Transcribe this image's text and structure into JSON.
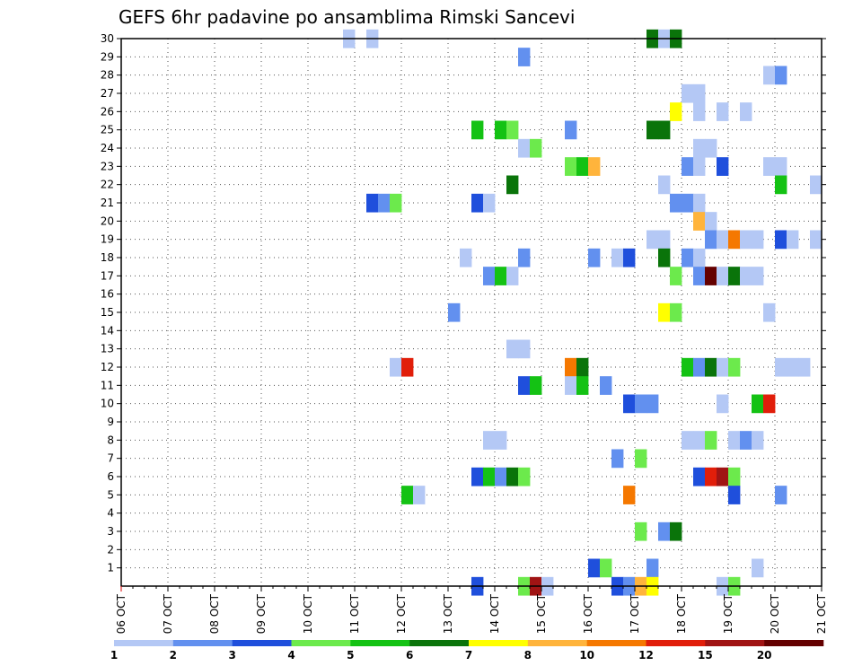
{
  "chart_data": {
    "type": "heatmap",
    "title": "GEFS 6hr padavine po ansamblima Rimski Sancevi",
    "xlabel": "",
    "ylabel": "",
    "x_ticks": [
      "06 OCT",
      "07 OCT",
      "08 OCT",
      "09 OCT",
      "10 OCT",
      "11 OCT",
      "12 OCT",
      "13 OCT",
      "14 OCT",
      "15 OCT",
      "16 OCT",
      "17 OCT",
      "18 OCT",
      "19 OCT",
      "20 OCT",
      "21 OCT"
    ],
    "x_range_days": [
      6,
      21
    ],
    "y_ticks": [
      1,
      2,
      3,
      4,
      5,
      6,
      7,
      8,
      9,
      10,
      11,
      12,
      13,
      14,
      15,
      16,
      17,
      18,
      19,
      20,
      21,
      22,
      23,
      24,
      25,
      26,
      27,
      28,
      29,
      30
    ],
    "y_range": [
      0,
      30
    ],
    "grid": true,
    "time_step_hours": 6,
    "legend": {
      "placement": "bottom",
      "labels": [
        "1",
        "2",
        "3",
        "4",
        "5",
        "6",
        "7",
        "8",
        "10",
        "12",
        "15",
        "20"
      ],
      "colors": [
        "#b4c8f5",
        "#6290ef",
        "#1f4fdc",
        "#6cea4c",
        "#14c214",
        "#0a740a",
        "#ffff00",
        "#ffb43c",
        "#f57800",
        "#e11e0a",
        "#a01414",
        "#640000"
      ]
    },
    "cells_note": "each cell: member (0-30), start (day of October, float, 6h steps), level (index into legend colors)",
    "cells": [
      {
        "m": 30,
        "t": 10.75,
        "c": 0
      },
      {
        "m": 30,
        "t": 11.25,
        "c": 0
      },
      {
        "m": 30,
        "t": 17.25,
        "c": 5
      },
      {
        "m": 30,
        "t": 17.5,
        "c": 0
      },
      {
        "m": 30,
        "t": 17.75,
        "c": 5
      },
      {
        "m": 29,
        "t": 14.5,
        "c": 1
      },
      {
        "m": 28,
        "t": 19.75,
        "c": 0
      },
      {
        "m": 28,
        "t": 20.0,
        "c": 1
      },
      {
        "m": 27,
        "t": 18.0,
        "c": 0
      },
      {
        "m": 27,
        "t": 18.25,
        "c": 0
      },
      {
        "m": 26,
        "t": 17.75,
        "c": 6
      },
      {
        "m": 26,
        "t": 18.25,
        "c": 0
      },
      {
        "m": 26,
        "t": 18.75,
        "c": 0
      },
      {
        "m": 26,
        "t": 19.25,
        "c": 0
      },
      {
        "m": 25,
        "t": 13.5,
        "c": 4
      },
      {
        "m": 25,
        "t": 14.0,
        "c": 4
      },
      {
        "m": 25,
        "t": 14.25,
        "c": 3
      },
      {
        "m": 25,
        "t": 15.5,
        "c": 1
      },
      {
        "m": 25,
        "t": 17.25,
        "c": 5
      },
      {
        "m": 25,
        "t": 17.5,
        "c": 5
      },
      {
        "m": 24,
        "t": 14.5,
        "c": 0
      },
      {
        "m": 24,
        "t": 14.75,
        "c": 3
      },
      {
        "m": 24,
        "t": 18.25,
        "c": 0
      },
      {
        "m": 24,
        "t": 18.5,
        "c": 0
      },
      {
        "m": 23,
        "t": 15.5,
        "c": 3
      },
      {
        "m": 23,
        "t": 15.75,
        "c": 4
      },
      {
        "m": 23,
        "t": 16.0,
        "c": 7
      },
      {
        "m": 23,
        "t": 18.0,
        "c": 1
      },
      {
        "m": 23,
        "t": 18.25,
        "c": 0
      },
      {
        "m": 23,
        "t": 18.75,
        "c": 2
      },
      {
        "m": 23,
        "t": 19.75,
        "c": 0
      },
      {
        "m": 23,
        "t": 20.0,
        "c": 0
      },
      {
        "m": 22,
        "t": 14.25,
        "c": 5
      },
      {
        "m": 22,
        "t": 17.5,
        "c": 0
      },
      {
        "m": 22,
        "t": 20.0,
        "c": 4
      },
      {
        "m": 22,
        "t": 20.75,
        "c": 0
      },
      {
        "m": 21,
        "t": 11.25,
        "c": 2
      },
      {
        "m": 21,
        "t": 11.5,
        "c": 1
      },
      {
        "m": 21,
        "t": 11.75,
        "c": 3
      },
      {
        "m": 21,
        "t": 13.5,
        "c": 2
      },
      {
        "m": 21,
        "t": 13.75,
        "c": 0
      },
      {
        "m": 21,
        "t": 17.75,
        "c": 1
      },
      {
        "m": 21,
        "t": 18.0,
        "c": 1
      },
      {
        "m": 21,
        "t": 18.25,
        "c": 0
      },
      {
        "m": 20,
        "t": 18.25,
        "c": 7
      },
      {
        "m": 20,
        "t": 18.5,
        "c": 0
      },
      {
        "m": 19,
        "t": 17.25,
        "c": 0
      },
      {
        "m": 19,
        "t": 17.5,
        "c": 0
      },
      {
        "m": 19,
        "t": 18.5,
        "c": 1
      },
      {
        "m": 19,
        "t": 18.75,
        "c": 0
      },
      {
        "m": 19,
        "t": 19.0,
        "c": 8
      },
      {
        "m": 19,
        "t": 19.25,
        "c": 0
      },
      {
        "m": 19,
        "t": 19.5,
        "c": 0
      },
      {
        "m": 19,
        "t": 20.0,
        "c": 2
      },
      {
        "m": 19,
        "t": 20.25,
        "c": 0
      },
      {
        "m": 19,
        "t": 20.75,
        "c": 0
      },
      {
        "m": 18,
        "t": 13.25,
        "c": 0
      },
      {
        "m": 18,
        "t": 14.5,
        "c": 1
      },
      {
        "m": 18,
        "t": 16.0,
        "c": 1
      },
      {
        "m": 18,
        "t": 16.5,
        "c": 0
      },
      {
        "m": 18,
        "t": 16.75,
        "c": 2
      },
      {
        "m": 18,
        "t": 17.5,
        "c": 5
      },
      {
        "m": 18,
        "t": 18.0,
        "c": 1
      },
      {
        "m": 18,
        "t": 18.25,
        "c": 0
      },
      {
        "m": 17,
        "t": 13.75,
        "c": 1
      },
      {
        "m": 17,
        "t": 14.0,
        "c": 4
      },
      {
        "m": 17,
        "t": 14.25,
        "c": 0
      },
      {
        "m": 17,
        "t": 17.75,
        "c": 3
      },
      {
        "m": 17,
        "t": 18.25,
        "c": 1
      },
      {
        "m": 17,
        "t": 18.5,
        "c": 11
      },
      {
        "m": 17,
        "t": 18.75,
        "c": 0
      },
      {
        "m": 17,
        "t": 19.0,
        "c": 5
      },
      {
        "m": 17,
        "t": 19.25,
        "c": 0
      },
      {
        "m": 17,
        "t": 19.5,
        "c": 0
      },
      {
        "m": 15,
        "t": 13.0,
        "c": 1
      },
      {
        "m": 15,
        "t": 17.5,
        "c": 6
      },
      {
        "m": 15,
        "t": 17.75,
        "c": 3
      },
      {
        "m": 15,
        "t": 19.75,
        "c": 0
      },
      {
        "m": 13,
        "t": 14.25,
        "c": 0
      },
      {
        "m": 13,
        "t": 14.5,
        "c": 0
      },
      {
        "m": 12,
        "t": 11.75,
        "c": 0
      },
      {
        "m": 12,
        "t": 12.0,
        "c": 9
      },
      {
        "m": 12,
        "t": 15.5,
        "c": 8
      },
      {
        "m": 12,
        "t": 15.75,
        "c": 5
      },
      {
        "m": 12,
        "t": 18.0,
        "c": 4
      },
      {
        "m": 12,
        "t": 18.25,
        "c": 1
      },
      {
        "m": 12,
        "t": 18.5,
        "c": 5
      },
      {
        "m": 12,
        "t": 18.75,
        "c": 0
      },
      {
        "m": 12,
        "t": 19.0,
        "c": 3
      },
      {
        "m": 12,
        "t": 20.0,
        "c": 0
      },
      {
        "m": 12,
        "t": 20.25,
        "c": 0
      },
      {
        "m": 12,
        "t": 20.5,
        "c": 0
      },
      {
        "m": 11,
        "t": 14.5,
        "c": 2
      },
      {
        "m": 11,
        "t": 14.75,
        "c": 4
      },
      {
        "m": 11,
        "t": 15.5,
        "c": 0
      },
      {
        "m": 11,
        "t": 15.75,
        "c": 4
      },
      {
        "m": 11,
        "t": 16.25,
        "c": 1
      },
      {
        "m": 10,
        "t": 16.75,
        "c": 2
      },
      {
        "m": 10,
        "t": 17.0,
        "c": 1
      },
      {
        "m": 10,
        "t": 17.25,
        "c": 1
      },
      {
        "m": 10,
        "t": 18.75,
        "c": 0
      },
      {
        "m": 10,
        "t": 19.5,
        "c": 4
      },
      {
        "m": 10,
        "t": 19.75,
        "c": 9
      },
      {
        "m": 8,
        "t": 13.75,
        "c": 0
      },
      {
        "m": 8,
        "t": 14.0,
        "c": 0
      },
      {
        "m": 8,
        "t": 18.0,
        "c": 0
      },
      {
        "m": 8,
        "t": 18.25,
        "c": 0
      },
      {
        "m": 8,
        "t": 18.5,
        "c": 3
      },
      {
        "m": 8,
        "t": 19.0,
        "c": 0
      },
      {
        "m": 8,
        "t": 19.25,
        "c": 1
      },
      {
        "m": 8,
        "t": 19.5,
        "c": 0
      },
      {
        "m": 7,
        "t": 16.5,
        "c": 1
      },
      {
        "m": 7,
        "t": 17.0,
        "c": 3
      },
      {
        "m": 6,
        "t": 13.5,
        "c": 2
      },
      {
        "m": 6,
        "t": 13.75,
        "c": 4
      },
      {
        "m": 6,
        "t": 14.0,
        "c": 1
      },
      {
        "m": 6,
        "t": 14.25,
        "c": 5
      },
      {
        "m": 6,
        "t": 14.5,
        "c": 3
      },
      {
        "m": 6,
        "t": 18.25,
        "c": 2
      },
      {
        "m": 6,
        "t": 18.5,
        "c": 9
      },
      {
        "m": 6,
        "t": 18.75,
        "c": 10
      },
      {
        "m": 6,
        "t": 19.0,
        "c": 3
      },
      {
        "m": 5,
        "t": 12.0,
        "c": 4
      },
      {
        "m": 5,
        "t": 12.25,
        "c": 0
      },
      {
        "m": 5,
        "t": 16.75,
        "c": 8
      },
      {
        "m": 5,
        "t": 19.0,
        "c": 2
      },
      {
        "m": 5,
        "t": 20.0,
        "c": 1
      },
      {
        "m": 3,
        "t": 17.0,
        "c": 3
      },
      {
        "m": 3,
        "t": 17.5,
        "c": 1
      },
      {
        "m": 3,
        "t": 17.75,
        "c": 5
      },
      {
        "m": 1,
        "t": 16.0,
        "c": 2
      },
      {
        "m": 1,
        "t": 16.25,
        "c": 3
      },
      {
        "m": 1,
        "t": 17.25,
        "c": 1
      },
      {
        "m": 1,
        "t": 19.5,
        "c": 0
      },
      {
        "m": 0,
        "t": 13.5,
        "c": 2
      },
      {
        "m": 0,
        "t": 14.5,
        "c": 3
      },
      {
        "m": 0,
        "t": 14.75,
        "c": 10
      },
      {
        "m": 0,
        "t": 15.0,
        "c": 0
      },
      {
        "m": 0,
        "t": 16.5,
        "c": 2
      },
      {
        "m": 0,
        "t": 16.75,
        "c": 1
      },
      {
        "m": 0,
        "t": 17.0,
        "c": 7
      },
      {
        "m": 0,
        "t": 17.25,
        "c": 6
      },
      {
        "m": 0,
        "t": 18.75,
        "c": 0
      },
      {
        "m": 0,
        "t": 19.0,
        "c": 3
      }
    ]
  }
}
